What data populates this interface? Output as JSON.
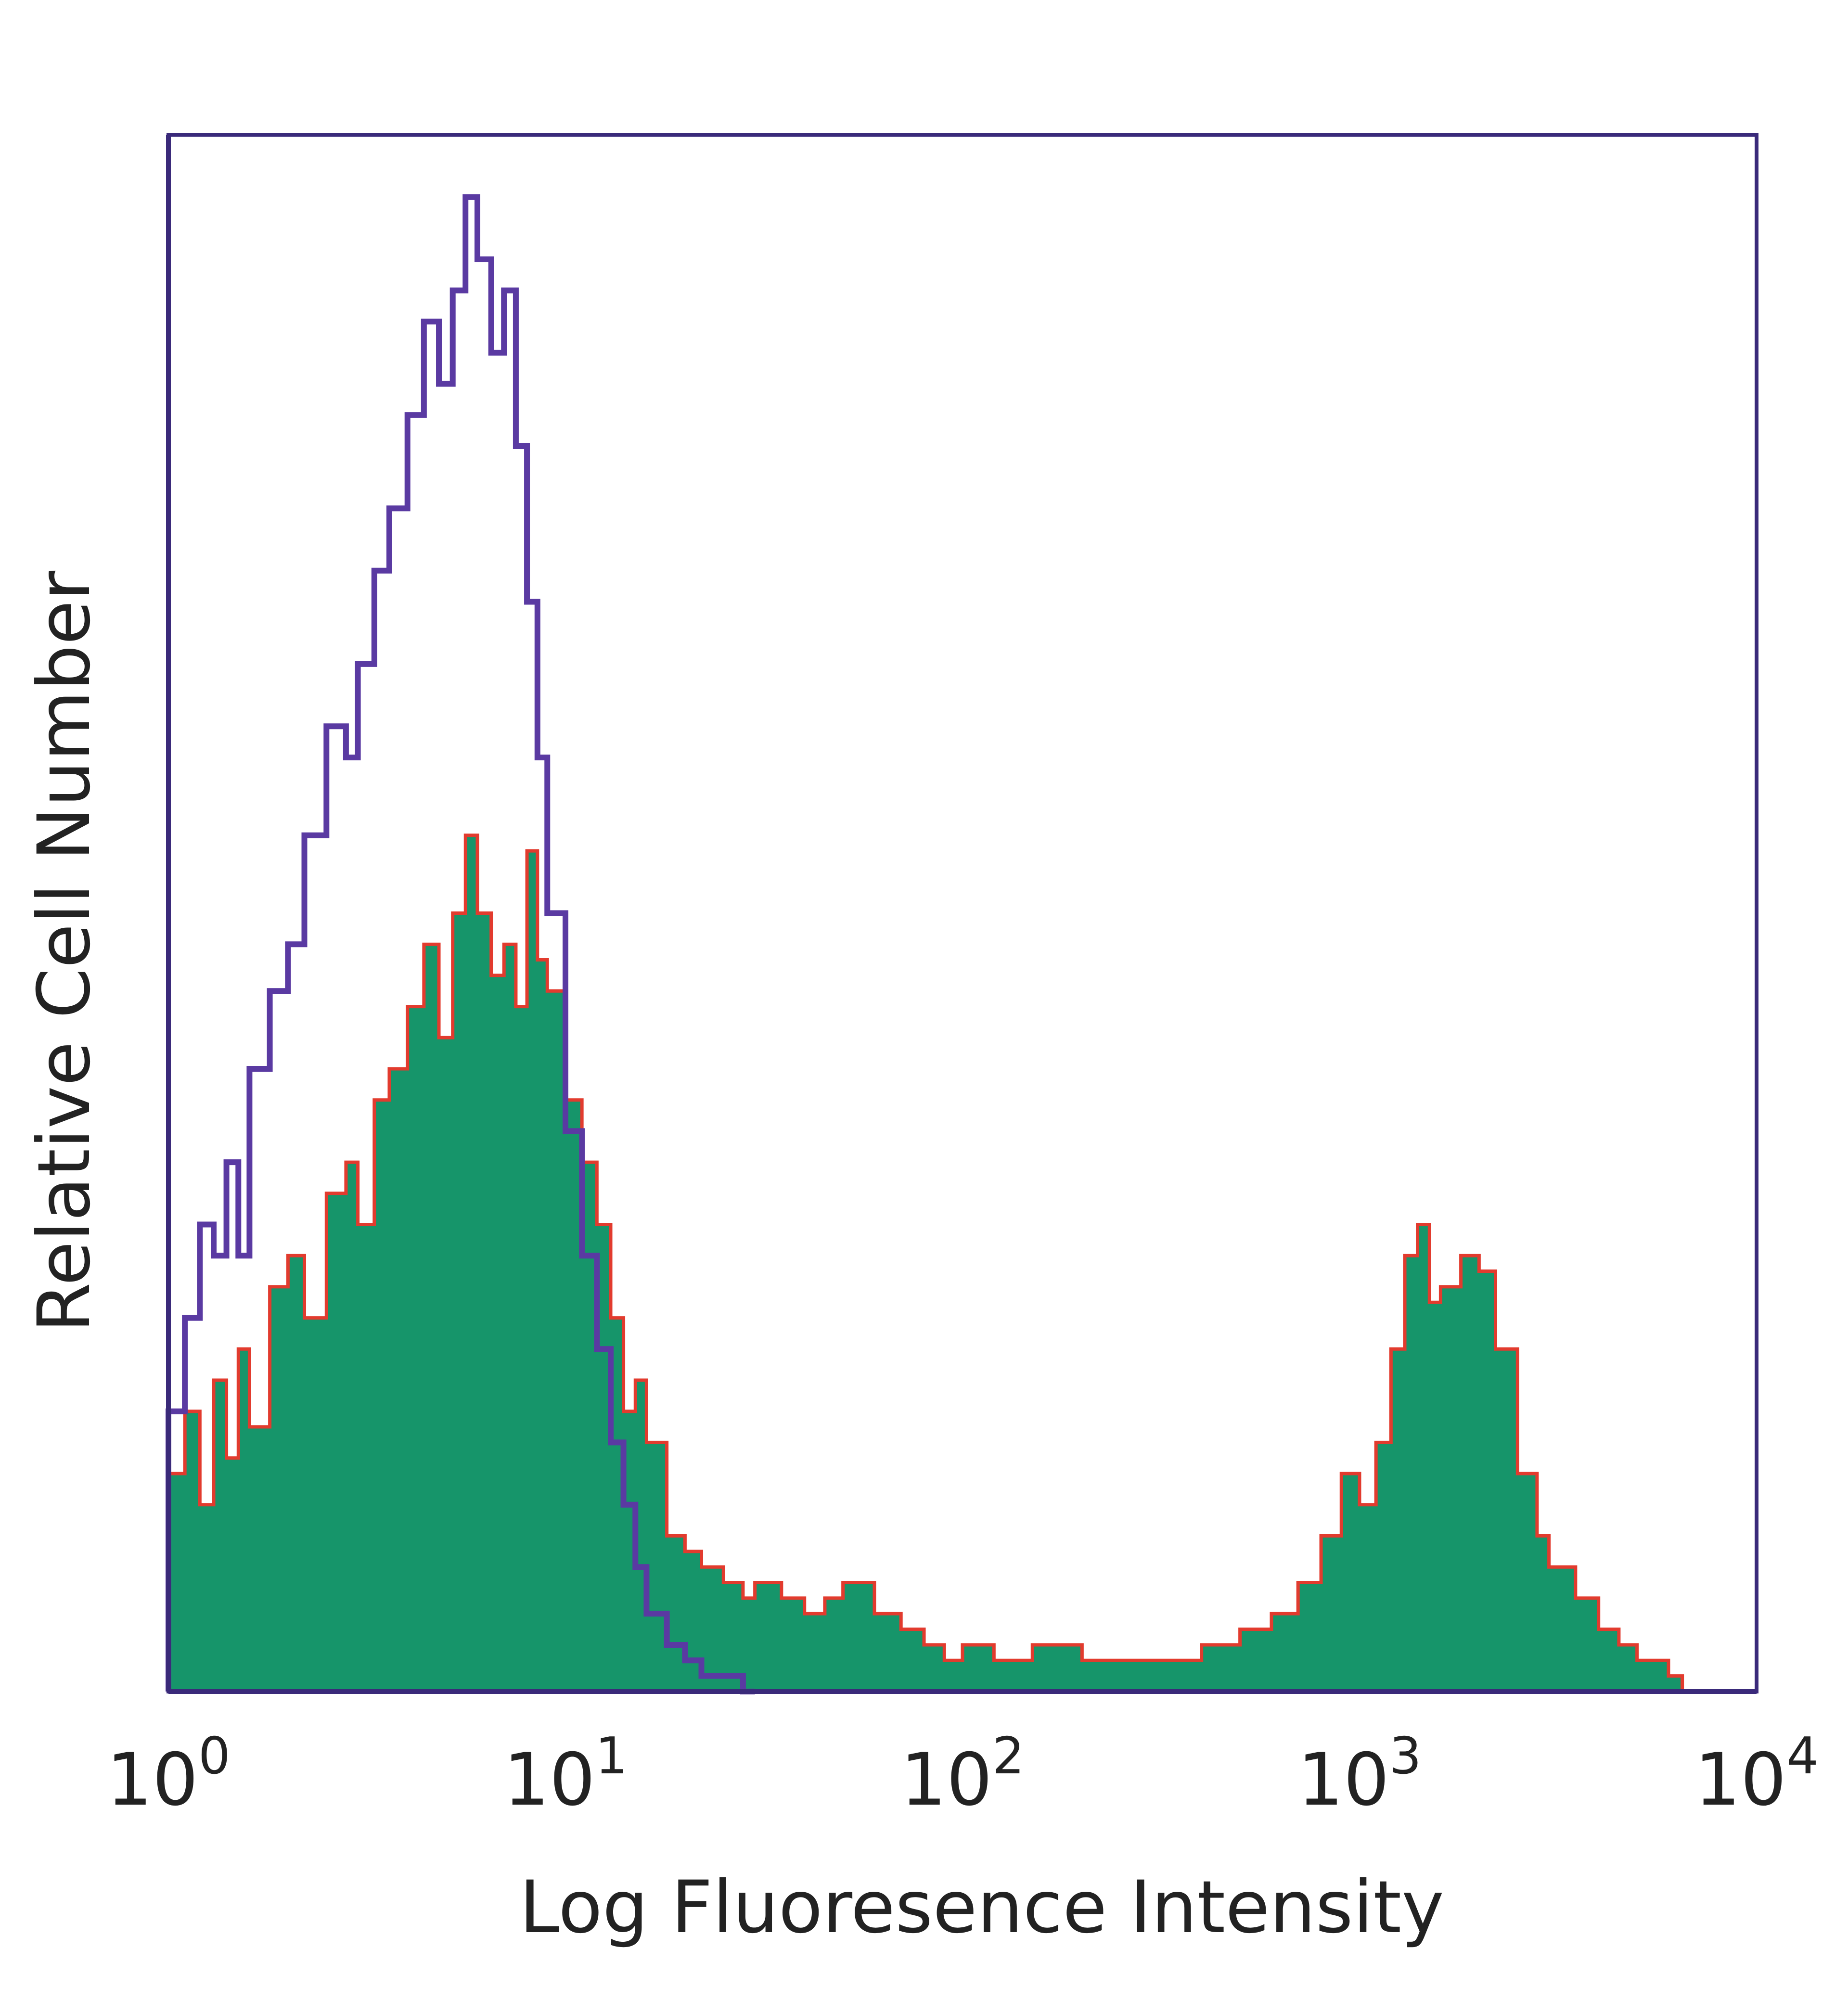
{
  "chart_data": {
    "type": "area",
    "title": "",
    "xlabel": "Log Fluoresence Intensity",
    "ylabel": "Relative Cell Number",
    "x_scale": "log",
    "xlim": [
      1,
      10000
    ],
    "ylim": [
      0,
      100
    ],
    "grid": false,
    "legend": "none",
    "x_tick_labels": [
      {
        "value": 1,
        "base": "10",
        "exp": "0"
      },
      {
        "value": 10,
        "base": "10",
        "exp": "1"
      },
      {
        "value": 100,
        "base": "10",
        "exp": "2"
      },
      {
        "value": 1000,
        "base": "10",
        "exp": "3"
      },
      {
        "value": 10000,
        "base": "10",
        "exp": "4"
      }
    ],
    "series": [
      {
        "style": "filled",
        "fill_color": "#16956a",
        "edge_color": "#e23b2e",
        "x": [
          1,
          1.1,
          1.2,
          1.3,
          1.4,
          1.5,
          1.6,
          1.8,
          2.0,
          2.2,
          2.5,
          2.8,
          3.0,
          3.3,
          3.6,
          4.0,
          4.4,
          4.8,
          5.2,
          5.6,
          6.0,
          6.5,
          7.0,
          7.5,
          8.0,
          8.5,
          9.0,
          10,
          11,
          12,
          13,
          14,
          15,
          16,
          18,
          20,
          22,
          25,
          28,
          30,
          35,
          40,
          45,
          50,
          60,
          70,
          80,
          90,
          100,
          120,
          150,
          200,
          250,
          300,
          400,
          500,
          600,
          700,
          800,
          900,
          1000,
          1100,
          1200,
          1300,
          1400,
          1500,
          1600,
          1800,
          2000,
          2200,
          2500,
          2800,
          3000,
          3500,
          4000,
          4500,
          5000,
          6000,
          6500,
          7000
        ],
        "y": [
          14,
          18,
          12,
          20,
          15,
          22,
          17,
          26,
          28,
          24,
          32,
          34,
          30,
          38,
          40,
          44,
          48,
          42,
          50,
          55,
          50,
          46,
          48,
          44,
          54,
          47,
          45,
          38,
          34,
          30,
          24,
          18,
          20,
          16,
          10,
          9,
          8,
          7,
          6,
          7,
          6,
          5,
          6,
          7,
          5,
          4,
          3,
          2,
          3,
          2,
          3,
          2,
          2,
          2,
          3,
          4,
          5,
          7,
          10,
          14,
          12,
          16,
          22,
          28,
          30,
          25,
          26,
          28,
          27,
          22,
          14,
          10,
          8,
          6,
          4,
          3,
          2,
          1,
          0,
          0
        ]
      },
      {
        "style": "outline",
        "line_color": "#5a3aa2",
        "x": [
          1,
          1.1,
          1.2,
          1.3,
          1.4,
          1.5,
          1.6,
          1.8,
          2.0,
          2.2,
          2.5,
          2.8,
          3.0,
          3.3,
          3.6,
          4.0,
          4.4,
          4.8,
          5.2,
          5.6,
          6.0,
          6.5,
          7.0,
          7.5,
          8.0,
          8.5,
          9.0,
          10,
          11,
          12,
          13,
          14,
          15,
          16,
          18,
          20,
          22,
          25,
          28,
          30
        ],
        "y": [
          18,
          24,
          30,
          28,
          34,
          28,
          40,
          45,
          48,
          55,
          62,
          60,
          66,
          72,
          76,
          82,
          88,
          84,
          90,
          96,
          92,
          86,
          90,
          80,
          70,
          60,
          50,
          36,
          28,
          22,
          16,
          12,
          8,
          5,
          3,
          2,
          1,
          1,
          0,
          0
        ]
      }
    ]
  }
}
